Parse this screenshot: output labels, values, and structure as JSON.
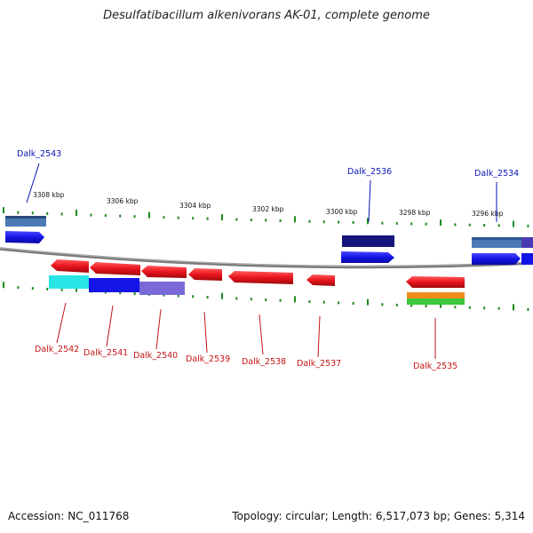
{
  "title": "Desulfatibacillum alkenivorans AK-01, complete genome",
  "footer": {
    "accession": "Accession: NC_011768",
    "summary": "Topology: circular; Length: 6,517,073 bp; Genes: 5,314"
  },
  "colors": {
    "backbone": "#808080",
    "tick": "#1e8a1e",
    "label_top": "#0a14b4",
    "label_bottom": "#c41414"
  },
  "scale_labels": [
    "3308 kbp",
    "3306 kbp",
    "3304 kbp",
    "3302 kbp",
    "3300 kbp",
    "3298 kbp",
    "3296 kbp"
  ],
  "gene_labels_top": [
    "Dalk_2543",
    "Dalk_2536",
    "Dalk_2534"
  ],
  "gene_labels_bottom": [
    "Dalk_2542",
    "Dalk_2541",
    "Dalk_2540",
    "Dalk_2539",
    "Dalk_2538",
    "Dalk_2537",
    "Dalk_2535"
  ],
  "feature_colors": {
    "red": "#e8141e",
    "blue": "#1414e6",
    "navy": "#14147a",
    "steel": "#4a7ab4",
    "cyan": "#28e6e6",
    "lavender": "#7a6ad8",
    "orange": "#f08c1e",
    "green": "#3cc83c"
  }
}
